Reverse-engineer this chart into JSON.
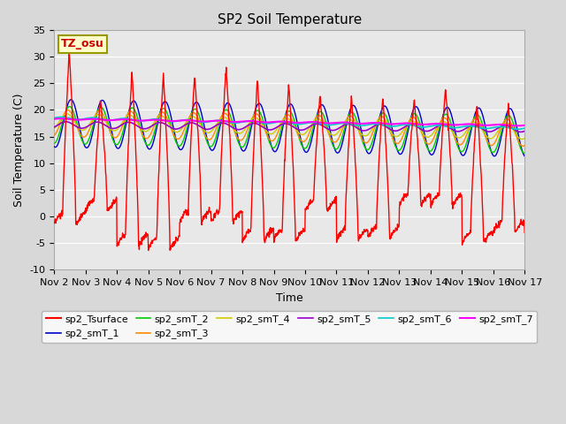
{
  "title": "SP2 Soil Temperature",
  "xlabel": "Time",
  "ylabel": "Soil Temperature (C)",
  "ylim": [
    -10,
    35
  ],
  "xlim": [
    0,
    15
  ],
  "xtick_labels": [
    "Nov 2",
    "Nov 3",
    "Nov 4",
    "Nov 5",
    "Nov 6",
    "Nov 7",
    "Nov 8",
    "Nov 9",
    "Nov 10",
    "Nov 11",
    "Nov 12",
    "Nov 13",
    "Nov 14",
    "Nov 15",
    "Nov 16",
    "Nov 17"
  ],
  "xtick_positions": [
    0,
    1,
    2,
    3,
    4,
    5,
    6,
    7,
    8,
    9,
    10,
    11,
    12,
    13,
    14,
    15
  ],
  "ytick_labels": [
    "-10",
    "-5",
    "0",
    "5",
    "10",
    "15",
    "20",
    "25",
    "30",
    "35"
  ],
  "ytick_positions": [
    -10,
    -5,
    0,
    5,
    10,
    15,
    20,
    25,
    30,
    35
  ],
  "fig_facecolor": "#d8d8d8",
  "ax_facecolor": "#e8e8e8",
  "series_colors": {
    "sp2_Tsurface": "#ff0000",
    "sp2_smT_1": "#0000cc",
    "sp2_smT_2": "#00cc00",
    "sp2_smT_3": "#ff8800",
    "sp2_smT_4": "#cccc00",
    "sp2_smT_5": "#9900cc",
    "sp2_smT_6": "#00cccc",
    "sp2_smT_7": "#ff00ff"
  },
  "tz_label": "TZ_osu",
  "title_fontsize": 11,
  "axis_label_fontsize": 9,
  "tick_fontsize": 8,
  "legend_fontsize": 8
}
